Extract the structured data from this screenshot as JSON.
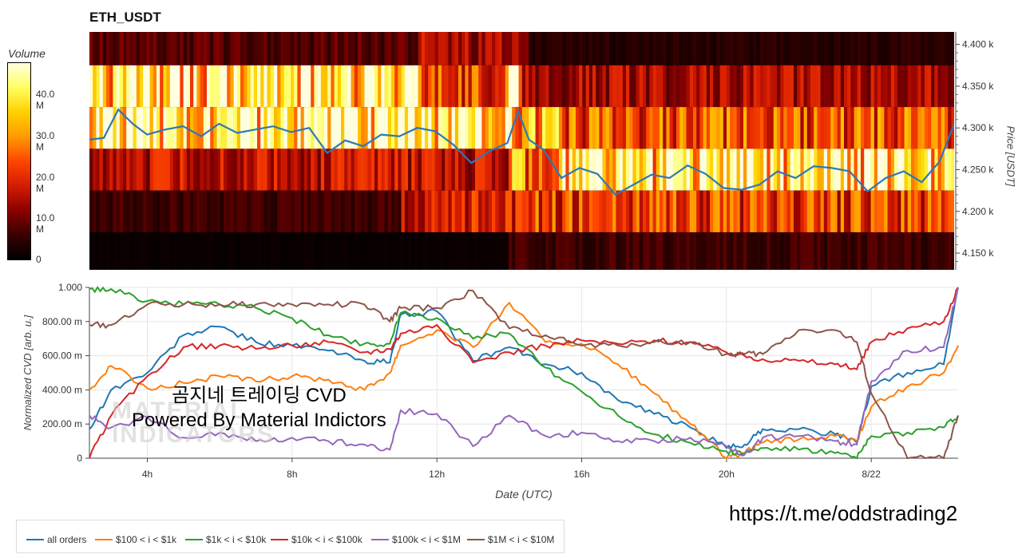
{
  "title": "ETH_USDT",
  "colorbar": {
    "title": "Volume",
    "ticks": [
      "40.0 M",
      "30.0 M",
      "20.0 M",
      "10.0 M",
      "0"
    ],
    "tick_values": [
      40,
      30,
      20,
      10,
      0
    ],
    "max": 48,
    "colors": [
      "#000000",
      "#3a0000",
      "#8b0000",
      "#d41c00",
      "#ff4500",
      "#ff9a00",
      "#ffd100",
      "#ffff60",
      "#ffffe0"
    ]
  },
  "price_axis": {
    "label": "Price [USDT]",
    "ticks": [
      "4.400 k",
      "4.350 k",
      "4.300 k",
      "4.250 k",
      "4.200 k",
      "4.150 k"
    ],
    "tick_values": [
      4400,
      4350,
      4300,
      4250,
      4200,
      4150
    ],
    "range": [
      4130,
      4415
    ]
  },
  "cvd_axis": {
    "ylabel": "Normalized CVD [arb. u.]",
    "yticks": [
      "1.000",
      "800.00 m",
      "600.00 m",
      "400.00 m",
      "200.00 m",
      "0"
    ],
    "ytick_values": [
      1.0,
      0.8,
      0.6,
      0.4,
      0.2,
      0.0
    ],
    "xlabel": "Date (UTC)",
    "xticks": [
      "4h",
      "8h",
      "12h",
      "16h",
      "20h",
      "8/22"
    ],
    "xtick_values": [
      4,
      8,
      12,
      16,
      20,
      24
    ],
    "xrange": [
      2.4,
      26.4
    ]
  },
  "watermark": {
    "line1": "곰지네 트레이딩 CVD",
    "line2": "Powered By Material Indictors",
    "logo_line1": "MATERIAL",
    "logo_line2": "INDICATORS"
  },
  "url": "https://t.me/oddstrading2",
  "legend": [
    {
      "name": "all orders",
      "color": "#1f77b4"
    },
    {
      "name": "$100 < i < $1k",
      "color": "#ff7f0e"
    },
    {
      "name": "$1k < i < $10k",
      "color": "#2ca02c"
    },
    {
      "name": "$10k < i < $100k",
      "color": "#d62728"
    },
    {
      "name": "$100k < i < $1M",
      "color": "#9467bd"
    },
    {
      "name": "$1M < i < $10M",
      "color": "#8c564b"
    }
  ],
  "chart_data": [
    {
      "type": "heatmap",
      "title": "ETH_USDT",
      "ylabel": "Price [USDT]",
      "x_range_hours": [
        2.4,
        26.4
      ],
      "price_bands": [
        [
          4375,
          4415
        ],
        [
          4325,
          4375
        ],
        [
          4275,
          4325
        ],
        [
          4225,
          4275
        ],
        [
          4175,
          4225
        ],
        [
          4130,
          4175
        ]
      ],
      "band_volume_profile": [
        {
          "band": "4375-4415",
          "segments": [
            [
              2.4,
              11.5,
              8
            ],
            [
              11.5,
              14.5,
              14
            ],
            [
              14.5,
              26.4,
              4
            ]
          ]
        },
        {
          "band": "4325-4375",
          "segments": [
            [
              2.4,
              11.5,
              38
            ],
            [
              11.5,
              14.0,
              22
            ],
            [
              14.0,
              14.4,
              40
            ],
            [
              14.4,
              26.4,
              14
            ]
          ]
        },
        {
          "band": "4275-4325",
          "segments": [
            [
              2.4,
              12.0,
              42
            ],
            [
              12.0,
              14.3,
              40
            ],
            [
              14.3,
              15.5,
              30
            ],
            [
              15.5,
              26.4,
              24
            ]
          ]
        },
        {
          "band": "4225-4275",
          "segments": [
            [
              2.4,
              14.0,
              16
            ],
            [
              14.0,
              15.5,
              28
            ],
            [
              15.5,
              26.4,
              38
            ]
          ]
        },
        {
          "band": "4175-4225",
          "segments": [
            [
              2.4,
              11.0,
              6
            ],
            [
              11.0,
              14.5,
              18
            ],
            [
              14.5,
              26.4,
              22
            ]
          ]
        },
        {
          "band": "4130-4175",
          "segments": [
            [
              2.4,
              14.0,
              1
            ],
            [
              14.0,
              26.4,
              6
            ]
          ]
        }
      ],
      "price_line": {
        "color": "#2e78b5",
        "x": [
          2.4,
          2.8,
          3.2,
          3.6,
          4.0,
          4.5,
          5.0,
          5.5,
          6.0,
          6.5,
          7.0,
          7.5,
          8.0,
          8.5,
          9.0,
          9.5,
          10.0,
          10.5,
          11.0,
          11.5,
          12.0,
          12.5,
          13.0,
          13.5,
          14.0,
          14.3,
          14.6,
          15.0,
          15.5,
          16.0,
          16.5,
          17.0,
          17.5,
          18.0,
          18.5,
          19.0,
          19.5,
          20.0,
          20.5,
          21.0,
          21.5,
          22.0,
          22.5,
          23.0,
          23.5,
          24.0,
          24.5,
          25.0,
          25.5,
          26.0,
          26.4
        ],
        "y": [
          4286,
          4288,
          4322,
          4305,
          4292,
          4298,
          4302,
          4290,
          4305,
          4294,
          4298,
          4302,
          4295,
          4300,
          4270,
          4285,
          4278,
          4292,
          4290,
          4300,
          4296,
          4280,
          4258,
          4272,
          4282,
          4320,
          4286,
          4274,
          4240,
          4252,
          4245,
          4220,
          4232,
          4244,
          4240,
          4255,
          4245,
          4228,
          4226,
          4232,
          4248,
          4240,
          4254,
          4252,
          4248,
          4224,
          4240,
          4248,
          4235,
          4260,
          4305
        ]
      }
    },
    {
      "type": "line",
      "xlabel": "Date (UTC)",
      "ylabel": "Normalized CVD [arb. u.]",
      "xlim": [
        2.4,
        26.4
      ],
      "ylim": [
        0,
        1.0
      ],
      "grid": true,
      "legend_position": "bottom-left",
      "x": [
        2.4,
        3,
        4,
        5,
        6,
        7,
        8,
        9,
        10,
        10.7,
        11,
        12,
        13,
        14,
        15,
        16,
        17,
        18,
        19,
        20,
        20.5,
        21,
        22,
        23,
        23.6,
        24,
        25,
        26,
        26.4
      ],
      "series": [
        {
          "name": "all orders",
          "color": "#1f77b4",
          "values": [
            0.17,
            0.4,
            0.5,
            0.72,
            0.77,
            0.68,
            0.66,
            0.63,
            0.57,
            0.56,
            0.84,
            0.86,
            0.57,
            0.65,
            0.55,
            0.5,
            0.34,
            0.26,
            0.18,
            0.06,
            0.08,
            0.17,
            0.17,
            0.14,
            0.09,
            0.42,
            0.5,
            0.55,
            1.0
          ]
        },
        {
          "name": "$100 < i < $1k",
          "color": "#ff7f0e",
          "values": [
            0.4,
            0.54,
            0.41,
            0.44,
            0.48,
            0.45,
            0.48,
            0.46,
            0.4,
            0.5,
            0.66,
            0.75,
            0.65,
            0.91,
            0.68,
            0.67,
            0.55,
            0.38,
            0.2,
            0.0,
            0.03,
            0.09,
            0.11,
            0.13,
            0.1,
            0.3,
            0.42,
            0.5,
            0.66
          ]
        },
        {
          "name": "$1k < i < $10k",
          "color": "#2ca02c",
          "values": [
            0.99,
            0.99,
            0.92,
            0.9,
            0.9,
            0.88,
            0.82,
            0.72,
            0.67,
            0.67,
            0.85,
            0.82,
            0.7,
            0.73,
            0.53,
            0.39,
            0.25,
            0.14,
            0.09,
            0.04,
            0.03,
            0.06,
            0.05,
            0.03,
            0.0,
            0.13,
            0.15,
            0.18,
            0.25
          ]
        },
        {
          "name": "$10k < i < $100k",
          "color": "#d62728",
          "values": [
            0.0,
            0.25,
            0.48,
            0.65,
            0.66,
            0.64,
            0.66,
            0.68,
            0.62,
            0.64,
            0.73,
            0.78,
            0.56,
            0.62,
            0.66,
            0.69,
            0.67,
            0.69,
            0.68,
            0.62,
            0.6,
            0.58,
            0.57,
            0.55,
            0.52,
            0.68,
            0.76,
            0.8,
            1.0
          ]
        },
        {
          "name": "$100k < i < $1M",
          "color": "#9467bd",
          "values": [
            0.25,
            0.18,
            0.24,
            0.12,
            0.15,
            0.1,
            0.12,
            0.1,
            0.08,
            0.05,
            0.28,
            0.26,
            0.07,
            0.25,
            0.13,
            0.15,
            0.1,
            0.1,
            0.12,
            0.07,
            0.02,
            0.12,
            0.13,
            0.1,
            0.08,
            0.45,
            0.63,
            0.65,
            1.0
          ]
        },
        {
          "name": "$1M < i < $10M",
          "color": "#8c564b",
          "values": [
            0.78,
            0.78,
            0.9,
            0.9,
            0.9,
            0.9,
            0.9,
            0.9,
            0.9,
            0.8,
            0.88,
            0.88,
            0.98,
            0.76,
            0.72,
            0.66,
            0.66,
            0.68,
            0.68,
            0.61,
            0.61,
            0.61,
            0.75,
            0.75,
            0.68,
            0.38,
            0.0,
            0.0,
            0.25
          ]
        }
      ]
    }
  ]
}
